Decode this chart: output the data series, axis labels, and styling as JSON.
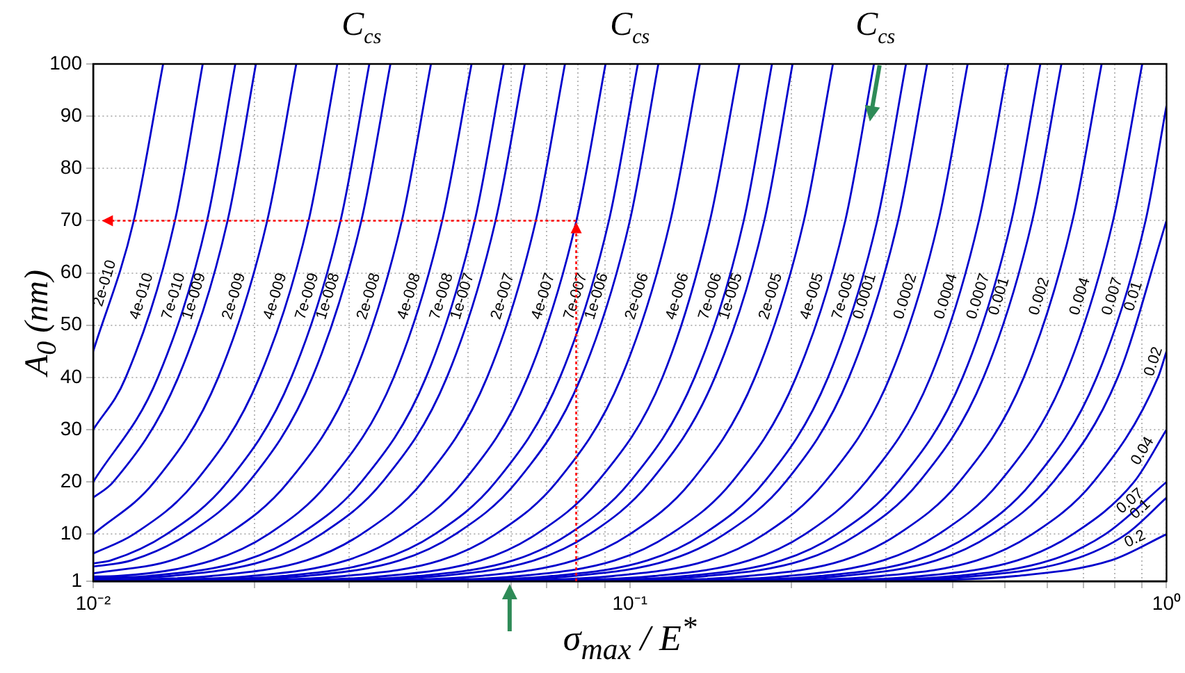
{
  "chart_data": {
    "type": "line",
    "xlabel": "σ$_{max}$ / E$^{*}$",
    "ylabel": "A$_{0}$ (nm)",
    "annotations": [
      "C$_{cs}$",
      "C$_{cs}$",
      {
        "text": "C$_{cs}$",
        "x": 0.28,
        "y": 89
      }
    ],
    "log": "x",
    "grid": true,
    "legend": false,
    "marker": "none",
    "line_style": "solid",
    "xlim": [
      0.01,
      1
    ],
    "ylim": [
      1,
      100
    ],
    "xticks": [
      {
        "value": 0.01,
        "label": "10⁻²"
      },
      {
        "value": 0.02,
        "label": null
      },
      {
        "value": 0.03,
        "label": null
      },
      {
        "value": 0.04,
        "label": null
      },
      {
        "value": 0.05,
        "label": null
      },
      {
        "value": 0.06,
        "label": null
      },
      {
        "value": 0.07,
        "label": null
      },
      {
        "value": 0.08,
        "label": null
      },
      {
        "value": 0.09,
        "label": null
      },
      {
        "value": 0.1,
        "label": "10⁻¹"
      },
      {
        "value": 0.2,
        "label": null
      },
      {
        "value": 0.3,
        "label": null
      },
      {
        "value": 0.4,
        "label": null
      },
      {
        "value": 0.5,
        "label": null
      },
      {
        "value": 0.6,
        "label": null
      },
      {
        "value": 0.7,
        "label": null
      },
      {
        "value": 0.8,
        "label": null
      },
      {
        "value": 0.9,
        "label": null
      },
      {
        "value": 1,
        "label": "10⁰"
      }
    ],
    "yticks": [
      1,
      10,
      20,
      30,
      40,
      50,
      60,
      70,
      80,
      90,
      100
    ],
    "series": [
      {
        "name": "2e-010",
        "color": "#0000cc",
        "x": [
          0.0135,
          0.0119,
          0.01
        ],
        "values": [
          100,
          70,
          45
        ]
      },
      {
        "name": "4e-010",
        "color": "#0000cc",
        "x": [
          0.016,
          0.0142,
          0.0115,
          0.01
        ],
        "values": [
          100,
          70,
          40,
          30
        ]
      },
      {
        "name": "7e-010",
        "color": "#0000cc",
        "x": [
          0.0184,
          0.0163,
          0.0132,
          0.01
        ],
        "values": [
          100,
          70,
          40,
          20
        ]
      },
      {
        "name": "1e-009",
        "color": "#0000cc",
        "x": [
          0.0201,
          0.0178,
          0.0144,
          0.0109,
          0.01
        ],
        "values": [
          100,
          70,
          40,
          20,
          17
        ]
      },
      {
        "name": "2e-009",
        "color": "#0000cc",
        "x": [
          0.0239,
          0.0211,
          0.0171,
          0.013,
          0.01
        ],
        "values": [
          100,
          70,
          40,
          20,
          10
        ]
      },
      {
        "name": "4e-009",
        "color": "#0000cc",
        "x": [
          0.0285,
          0.0252,
          0.0204,
          0.0155,
          0.0119,
          0.01
        ],
        "values": [
          100,
          70,
          40,
          20,
          10,
          6.3
        ]
      },
      {
        "name": "7e-009",
        "color": "#0000cc",
        "x": [
          0.0327,
          0.0289,
          0.0234,
          0.0178,
          0.0137,
          0.0108,
          0.01
        ],
        "values": [
          100,
          70,
          40,
          20,
          10,
          5,
          4.4
        ]
      },
      {
        "name": "1e-008",
        "color": "#0000cc",
        "x": [
          0.0358,
          0.0316,
          0.0256,
          0.0195,
          0.015,
          0.0118,
          0.01
        ],
        "values": [
          100,
          70,
          40,
          20,
          10,
          5,
          3.8
        ]
      },
      {
        "name": "2e-008",
        "color": "#0000cc",
        "x": [
          0.0426,
          0.0376,
          0.0305,
          0.0231,
          0.0178,
          0.014,
          0.01
        ],
        "values": [
          100,
          70,
          40,
          20,
          10,
          5,
          2.5
        ]
      },
      {
        "name": "4e-008",
        "color": "#0000cc",
        "x": [
          0.0507,
          0.0447,
          0.0363,
          0.0275,
          0.0212,
          0.0167,
          0.0111,
          0.01
        ],
        "values": [
          100,
          70,
          40,
          20,
          10,
          5,
          2,
          1.9
        ]
      },
      {
        "name": "7e-008",
        "color": "#0000cc",
        "x": [
          0.0582,
          0.0514,
          0.0417,
          0.0316,
          0.0243,
          0.0192,
          0.0127,
          0.01
        ],
        "values": [
          100,
          70,
          40,
          20,
          10,
          5,
          2,
          1.6
        ]
      },
      {
        "name": "1e-007",
        "color": "#0000cc",
        "x": [
          0.0637,
          0.0562,
          0.0456,
          0.0346,
          0.0266,
          0.021,
          0.0139,
          0.01
        ],
        "values": [
          100,
          70,
          40,
          20,
          10,
          5,
          2,
          1.5
        ]
      },
      {
        "name": "2e-007",
        "color": "#0000cc",
        "x": [
          0.0757,
          0.0668,
          0.0542,
          0.0411,
          0.0316,
          0.025,
          0.0166,
          0.01
        ],
        "values": [
          100,
          70,
          40,
          20,
          10,
          5,
          2,
          1.2
        ]
      },
      {
        "name": "4e-007",
        "color": "#0000cc",
        "x": [
          0.0901,
          0.0795,
          0.0645,
          0.0489,
          0.0376,
          0.0297,
          0.0197,
          0.0116,
          0.01
        ],
        "values": [
          100,
          70,
          40,
          20,
          10,
          5,
          2,
          1.2,
          1.1
        ]
      },
      {
        "name": "7e-007",
        "color": "#0000cc",
        "x": [
          0.1035,
          0.0914,
          0.0741,
          0.0562,
          0.0433,
          0.0341,
          0.0226,
          0.0133,
          0.01
        ],
        "values": [
          100,
          70,
          40,
          20,
          10,
          5,
          2,
          1.2,
          1.1
        ]
      },
      {
        "name": "1e-006",
        "color": "#0000cc",
        "x": [
          0.113,
          0.1,
          0.0811,
          0.0615,
          0.0473,
          0.0373,
          0.0248,
          0.0146,
          0.01
        ],
        "values": [
          100,
          70,
          40,
          20,
          10,
          5,
          2,
          1.2,
          1.1
        ]
      },
      {
        "name": "2e-006",
        "color": "#0000cc",
        "x": [
          0.135,
          0.119,
          0.0964,
          0.0731,
          0.0562,
          0.0444,
          0.0294,
          0.0173,
          0.01
        ],
        "values": [
          100,
          70,
          40,
          20,
          10,
          5,
          2,
          1.2,
          1.1
        ]
      },
      {
        "name": "4e-006",
        "color": "#0000cc",
        "x": [
          0.16,
          0.141,
          0.115,
          0.087,
          0.0669,
          0.0528,
          0.035,
          0.0206,
          0.01
        ],
        "values": [
          100,
          70,
          40,
          20,
          10,
          5,
          2,
          1.2,
          1.1
        ]
      },
      {
        "name": "7e-006",
        "color": "#0000cc",
        "x": [
          0.184,
          0.163,
          0.132,
          0.1,
          0.0769,
          0.0607,
          0.0403,
          0.0237,
          0.01
        ],
        "values": [
          100,
          70,
          40,
          20,
          10,
          5,
          2,
          1.2,
          1.1
        ]
      },
      {
        "name": "1e-005",
        "color": "#0000cc",
        "x": [
          0.201,
          0.178,
          0.144,
          0.109,
          0.0841,
          0.0664,
          0.0441,
          0.0259,
          0.01
        ],
        "values": [
          100,
          70,
          40,
          20,
          10,
          5,
          2,
          1.2,
          1.1
        ]
      },
      {
        "name": "2e-005",
        "color": "#0000cc",
        "x": [
          0.239,
          0.211,
          0.171,
          0.13,
          0.1,
          0.0789,
          0.0524,
          0.0308,
          0.01
        ],
        "values": [
          100,
          70,
          40,
          20,
          10,
          5,
          2,
          1.2,
          1.1
        ]
      },
      {
        "name": "4e-005",
        "color": "#0000cc",
        "x": [
          0.285,
          0.252,
          0.204,
          0.155,
          0.119,
          0.0939,
          0.0623,
          0.0367,
          0.01
        ],
        "values": [
          100,
          70,
          40,
          20,
          10,
          5,
          2,
          1.2,
          1.1
        ]
      },
      {
        "name": "7e-005",
        "color": "#0000cc",
        "x": [
          0.327,
          0.289,
          0.234,
          0.178,
          0.137,
          0.108,
          0.0716,
          0.0422,
          0.01
        ],
        "values": [
          100,
          70,
          40,
          20,
          10,
          5,
          2,
          1.2,
          1.1
        ]
      },
      {
        "name": "0.0001",
        "color": "#0000cc",
        "x": [
          0.358,
          0.316,
          0.256,
          0.195,
          0.15,
          0.118,
          0.0783,
          0.0461,
          0.01
        ],
        "values": [
          100,
          70,
          40,
          20,
          10,
          5,
          2,
          1.2,
          1.1
        ]
      },
      {
        "name": "0.0002",
        "color": "#0000cc",
        "x": [
          0.426,
          0.376,
          0.305,
          0.231,
          0.178,
          0.14,
          0.0931,
          0.0548,
          0.01
        ],
        "values": [
          100,
          70,
          40,
          20,
          10,
          5,
          2,
          1.2,
          1.1
        ]
      },
      {
        "name": "0.0004",
        "color": "#0000cc",
        "x": [
          0.507,
          0.447,
          0.363,
          0.275,
          0.212,
          0.167,
          0.111,
          0.0652,
          0.01
        ],
        "values": [
          100,
          70,
          40,
          20,
          10,
          5,
          2,
          1.2,
          1.1
        ]
      },
      {
        "name": "0.0007",
        "color": "#0000cc",
        "x": [
          0.582,
          0.514,
          0.417,
          0.316,
          0.243,
          0.192,
          0.127,
          0.075,
          0.01
        ],
        "values": [
          100,
          70,
          40,
          20,
          10,
          5,
          2,
          1.2,
          1.1
        ]
      },
      {
        "name": "0.001",
        "color": "#0000cc",
        "x": [
          0.637,
          0.562,
          0.456,
          0.346,
          0.266,
          0.21,
          0.139,
          0.082,
          0.01
        ],
        "values": [
          100,
          70,
          40,
          20,
          10,
          5,
          2,
          1.2,
          1.1
        ]
      },
      {
        "name": "0.002",
        "color": "#0000cc",
        "x": [
          0.757,
          0.668,
          0.542,
          0.411,
          0.316,
          0.25,
          0.166,
          0.0975,
          0.01
        ],
        "values": [
          100,
          70,
          40,
          20,
          10,
          5,
          2,
          1.2,
          1.1
        ]
      },
      {
        "name": "0.004",
        "color": "#0000cc",
        "x": [
          0.901,
          0.795,
          0.645,
          0.489,
          0.376,
          0.297,
          0.197,
          0.116,
          0.01
        ],
        "values": [
          100,
          70,
          40,
          20,
          10,
          5,
          2,
          1.2,
          1.1
        ]
      },
      {
        "name": "0.007",
        "color": "#0000cc",
        "x": [
          1,
          0.914,
          0.741,
          0.562,
          0.433,
          0.341,
          0.226,
          0.133,
          0.01
        ],
        "values": [
          92,
          70,
          40,
          20,
          10,
          5,
          2,
          1.2,
          1.1
        ]
      },
      {
        "name": "0.01",
        "color": "#0000cc",
        "x": [
          1,
          0.811,
          0.615,
          0.473,
          0.373,
          0.248,
          0.146,
          0.01
        ],
        "values": [
          70,
          40,
          20,
          10,
          5,
          2,
          1.2,
          1.1
        ]
      },
      {
        "name": "0.02",
        "color": "#0000cc",
        "x": [
          1,
          0.964,
          0.731,
          0.562,
          0.444,
          0.294,
          0.173,
          0.01
        ],
        "values": [
          45,
          40,
          20,
          10,
          5,
          2,
          1.2,
          1.1
        ]
      },
      {
        "name": "0.04",
        "color": "#0000cc",
        "x": [
          1,
          0.87,
          0.669,
          0.528,
          0.35,
          0.206,
          0.01
        ],
        "values": [
          30,
          20,
          10,
          5,
          2,
          1.2,
          1.1
        ]
      },
      {
        "name": "0.07",
        "color": "#0000cc",
        "x": [
          1,
          0.769,
          0.607,
          0.403,
          0.237,
          0.01
        ],
        "values": [
          20,
          10,
          5,
          2,
          1.2,
          1.1
        ]
      },
      {
        "name": "0.1",
        "color": "#0000cc",
        "x": [
          1,
          0.841,
          0.664,
          0.441,
          0.259,
          0.01
        ],
        "values": [
          17,
          10,
          5,
          2,
          1.2,
          1.1
        ]
      },
      {
        "name": "0.2",
        "color": "#0000cc",
        "x": [
          1,
          0.789,
          0.524,
          0.308,
          0.01
        ],
        "values": [
          10,
          5,
          2,
          1.2,
          1.1
        ]
      }
    ]
  }
}
